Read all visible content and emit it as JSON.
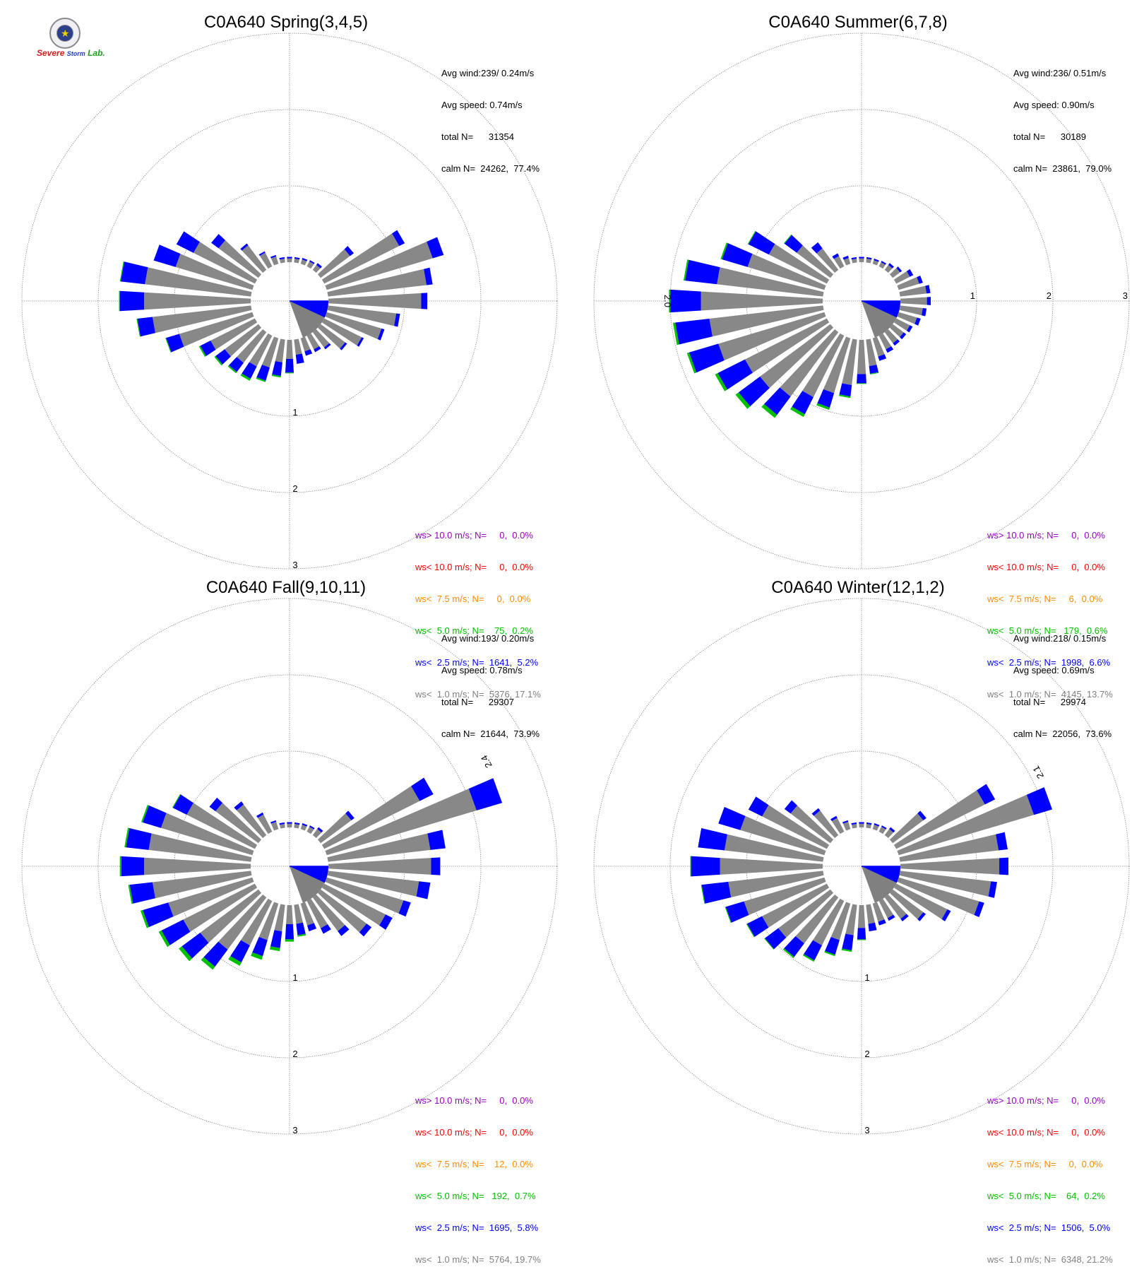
{
  "colors": {
    "calm": "#808080",
    "lt1_0": "#888888",
    "lt2_5": "#0000ff",
    "lt5_0": "#00c000",
    "lt7_5": "#ff8c00",
    "lt10_0": "#ff0000",
    "gt10_0": "#9900cc"
  },
  "logo": {
    "text_s": "Severe",
    "text_storm": "Storm",
    "text_lab": "Lab."
  },
  "chart_data": [
    {
      "type": "wind-rose",
      "title": "C0A640 Spring(3,4,5)",
      "stats": {
        "avg_wind": "Avg wind:239/ 0.24m/s",
        "avg_speed": "Avg speed: 0.74m/s",
        "total_n": "total N=      31354",
        "calm_n": "calm N=  24262,  77.4%"
      },
      "ring_labels": [
        "1",
        "2",
        "3"
      ],
      "ring_label_side": "bottom",
      "max_label": "",
      "calm_pct": 77.4,
      "legend": [
        {
          "text": "ws> 10.0 m/s; N=     0,  0.0%",
          "color": "#9900cc"
        },
        {
          "text": "ws< 10.0 m/s; N=     0,  0.0%",
          "color": "#ff0000"
        },
        {
          "text": "ws<  7.5 m/s; N=     0,  0.0%",
          "color": "#ff8c00"
        },
        {
          "text": "ws<  5.0 m/s; N=    75,  0.2%",
          "color": "#00c000"
        },
        {
          "text": "ws<  2.5 m/s; N=  1641,  5.2%",
          "color": "#0000ff"
        },
        {
          "text": "ws<  1.0 m/s; N=  5376, 17.1%",
          "color": "#808080"
        }
      ],
      "directions_deg": [
        0,
        10,
        20,
        30,
        40,
        50,
        60,
        70,
        80,
        90,
        100,
        110,
        120,
        130,
        140,
        150,
        160,
        170,
        180,
        190,
        200,
        210,
        220,
        230,
        240,
        250,
        260,
        270,
        280,
        290,
        300,
        310,
        320,
        330,
        340,
        350
      ],
      "lt1": [
        0.05,
        0.05,
        0.06,
        0.07,
        0.08,
        0.48,
        1.1,
        1.45,
        1.3,
        1.22,
        0.9,
        0.75,
        0.55,
        0.4,
        0.25,
        0.2,
        0.18,
        0.2,
        0.25,
        0.3,
        0.4,
        0.45,
        0.5,
        0.55,
        0.65,
        1.0,
        1.3,
        1.4,
        1.4,
        1.05,
        0.9,
        0.65,
        0.4,
        0.2,
        0.1,
        0.05
      ],
      "lt2_5": [
        0.02,
        0.02,
        0.02,
        0.02,
        0.03,
        0.06,
        0.08,
        0.15,
        0.08,
        0.08,
        0.05,
        0.04,
        0.03,
        0.03,
        0.03,
        0.04,
        0.06,
        0.12,
        0.18,
        0.18,
        0.18,
        0.18,
        0.15,
        0.15,
        0.15,
        0.18,
        0.2,
        0.32,
        0.32,
        0.3,
        0.25,
        0.12,
        0.03,
        0.02,
        0.02,
        0.02
      ],
      "lt5": [
        0,
        0,
        0,
        0,
        0,
        0,
        0,
        0,
        0,
        0,
        0,
        0,
        0,
        0,
        0,
        0,
        0,
        0,
        0.01,
        0.02,
        0.02,
        0.03,
        0.02,
        0.02,
        0.02,
        0.01,
        0.01,
        0.01,
        0.01,
        0,
        0,
        0,
        0,
        0,
        0,
        0
      ]
    },
    {
      "type": "wind-rose",
      "title": "C0A640 Summer(6,7,8)",
      "stats": {
        "avg_wind": "Avg wind:236/ 0.51m/s",
        "avg_speed": "Avg speed: 0.90m/s",
        "total_n": "total N=      30189",
        "calm_n": "calm N=  23861,  79.0%"
      },
      "ring_labels": [
        "1",
        "2",
        "3"
      ],
      "ring_label_side": "right",
      "max_label": "2.0",
      "max_label_dir": 270,
      "calm_pct": 79.0,
      "legend": [
        {
          "text": "ws> 10.0 m/s; N=     0,  0.0%",
          "color": "#9900cc"
        },
        {
          "text": "ws< 10.0 m/s; N=     0,  0.0%",
          "color": "#ff0000"
        },
        {
          "text": "ws<  7.5 m/s; N=     6,  0.0%",
          "color": "#ff8c00"
        },
        {
          "text": "ws<  5.0 m/s; N=   179,  0.6%",
          "color": "#00c000"
        },
        {
          "text": "ws<  2.5 m/s; N=  1998,  6.6%",
          "color": "#0000ff"
        },
        {
          "text": "ws<  1.0 m/s; N=  4145, 13.7%",
          "color": "#808080"
        }
      ],
      "directions_deg": [
        0,
        10,
        20,
        30,
        40,
        50,
        60,
        70,
        80,
        90,
        100,
        110,
        120,
        130,
        140,
        150,
        160,
        170,
        180,
        190,
        200,
        210,
        220,
        230,
        240,
        250,
        260,
        270,
        280,
        290,
        300,
        310,
        320,
        330,
        340,
        350
      ],
      "lt1": [
        0.05,
        0.05,
        0.05,
        0.06,
        0.08,
        0.12,
        0.2,
        0.28,
        0.35,
        0.35,
        0.3,
        0.25,
        0.2,
        0.18,
        0.18,
        0.2,
        0.25,
        0.35,
        0.45,
        0.6,
        0.75,
        0.9,
        1.05,
        1.15,
        1.2,
        1.45,
        1.5,
        1.6,
        1.4,
        1.05,
        0.85,
        0.55,
        0.35,
        0.15,
        0.08,
        0.05
      ],
      "lt2_5": [
        0.02,
        0.02,
        0.02,
        0.02,
        0.03,
        0.03,
        0.05,
        0.05,
        0.05,
        0.05,
        0.05,
        0.05,
        0.04,
        0.04,
        0.04,
        0.05,
        0.06,
        0.1,
        0.12,
        0.15,
        0.2,
        0.25,
        0.3,
        0.35,
        0.4,
        0.4,
        0.45,
        0.4,
        0.42,
        0.35,
        0.3,
        0.2,
        0.1,
        0.04,
        0.03,
        0.02
      ],
      "lt5": [
        0,
        0,
        0,
        0,
        0,
        0,
        0,
        0,
        0,
        0,
        0,
        0,
        0,
        0,
        0,
        0,
        0,
        0.01,
        0.01,
        0.02,
        0.03,
        0.04,
        0.05,
        0.05,
        0.04,
        0.03,
        0.03,
        0.02,
        0.02,
        0.02,
        0.01,
        0.01,
        0,
        0,
        0,
        0
      ]
    },
    {
      "type": "wind-rose",
      "title": "C0A640 Fall(9,10,11)",
      "stats": {
        "avg_wind": "Avg wind:193/ 0.20m/s",
        "avg_speed": "Avg speed: 0.78m/s",
        "total_n": "total N=      29307",
        "calm_n": "calm N=  21644,  73.9%"
      },
      "ring_labels": [
        "1",
        "2",
        "3"
      ],
      "ring_label_side": "bottom",
      "max_label": "2.4",
      "max_label_dir": 62,
      "calm_pct": 73.9,
      "legend": [
        {
          "text": "ws> 10.0 m/s; N=     0,  0.0%",
          "color": "#9900cc"
        },
        {
          "text": "ws< 10.0 m/s; N=     0,  0.0%",
          "color": "#ff0000"
        },
        {
          "text": "ws<  7.5 m/s; N=    12,  0.0%",
          "color": "#ff8c00"
        },
        {
          "text": "ws<  5.0 m/s; N=   192,  0.7%",
          "color": "#00c000"
        },
        {
          "text": "ws<  2.5 m/s; N=  1695,  5.8%",
          "color": "#0000ff"
        },
        {
          "text": "ws<  1.0 m/s; N=  5764, 19.7%",
          "color": "#808080"
        }
      ],
      "directions_deg": [
        0,
        10,
        20,
        30,
        40,
        50,
        60,
        70,
        80,
        90,
        100,
        110,
        120,
        130,
        140,
        150,
        160,
        170,
        180,
        190,
        200,
        210,
        220,
        230,
        240,
        250,
        260,
        270,
        280,
        290,
        300,
        310,
        320,
        330,
        340,
        350
      ],
      "lt1": [
        0.05,
        0.05,
        0.06,
        0.07,
        0.1,
        0.5,
        1.4,
        2.05,
        1.35,
        1.35,
        1.2,
        1.05,
        0.9,
        0.75,
        0.55,
        0.4,
        0.3,
        0.25,
        0.25,
        0.35,
        0.5,
        0.65,
        0.85,
        0.95,
        1.05,
        1.15,
        1.3,
        1.4,
        1.35,
        1.25,
        1.0,
        0.7,
        0.5,
        0.25,
        0.1,
        0.05
      ],
      "lt2_5": [
        0.02,
        0.02,
        0.02,
        0.02,
        0.03,
        0.05,
        0.2,
        0.35,
        0.2,
        0.12,
        0.15,
        0.1,
        0.1,
        0.08,
        0.08,
        0.08,
        0.08,
        0.15,
        0.2,
        0.22,
        0.22,
        0.25,
        0.28,
        0.3,
        0.32,
        0.35,
        0.3,
        0.3,
        0.3,
        0.25,
        0.2,
        0.1,
        0.05,
        0.03,
        0.02,
        0.02
      ],
      "lt5": [
        0,
        0,
        0,
        0,
        0,
        0,
        0,
        0,
        0,
        0,
        0,
        0,
        0,
        0,
        0,
        0,
        0,
        0.02,
        0.03,
        0.04,
        0.05,
        0.05,
        0.05,
        0.05,
        0.04,
        0.03,
        0.02,
        0.02,
        0.02,
        0.02,
        0.01,
        0,
        0,
        0,
        0,
        0
      ]
    },
    {
      "type": "wind-rose",
      "title": "C0A640 Winter(12,1,2)",
      "stats": {
        "avg_wind": "Avg wind:218/ 0.15m/s",
        "avg_speed": "Avg speed: 0.69m/s",
        "total_n": "total N=      29974",
        "calm_n": "calm N=  22056,  73.6%"
      },
      "ring_labels": [
        "1",
        "2",
        "3"
      ],
      "ring_label_side": "bottom",
      "max_label": "2.1",
      "max_label_dir": 62,
      "calm_pct": 73.6,
      "legend": [
        {
          "text": "ws> 10.0 m/s; N=     0,  0.0%",
          "color": "#9900cc"
        },
        {
          "text": "ws< 10.0 m/s; N=     0,  0.0%",
          "color": "#ff0000"
        },
        {
          "text": "ws<  7.5 m/s; N=     0,  0.0%",
          "color": "#ff8c00"
        },
        {
          "text": "ws<  5.0 m/s; N=    64,  0.2%",
          "color": "#00c000"
        },
        {
          "text": "ws<  2.5 m/s; N=  1506,  5.0%",
          "color": "#0000ff"
        },
        {
          "text": "ws<  1.0 m/s; N=  6348, 21.2%",
          "color": "#808080"
        }
      ],
      "directions_deg": [
        0,
        10,
        20,
        30,
        40,
        50,
        60,
        70,
        80,
        90,
        100,
        110,
        120,
        130,
        140,
        150,
        160,
        170,
        180,
        190,
        200,
        210,
        220,
        230,
        240,
        250,
        260,
        270,
        280,
        290,
        300,
        310,
        320,
        330,
        340,
        350
      ],
      "lt1": [
        0.05,
        0.05,
        0.06,
        0.07,
        0.1,
        0.5,
        1.3,
        1.85,
        1.3,
        1.3,
        1.2,
        1.1,
        0.75,
        0.5,
        0.35,
        0.25,
        0.25,
        0.25,
        0.3,
        0.4,
        0.5,
        0.65,
        0.75,
        0.85,
        0.95,
        1.1,
        1.25,
        1.35,
        1.3,
        1.15,
        0.95,
        0.65,
        0.4,
        0.2,
        0.1,
        0.05
      ],
      "lt2_5": [
        0.02,
        0.02,
        0.02,
        0.02,
        0.03,
        0.05,
        0.15,
        0.25,
        0.12,
        0.12,
        0.08,
        0.07,
        0.05,
        0.04,
        0.04,
        0.04,
        0.05,
        0.1,
        0.15,
        0.2,
        0.2,
        0.22,
        0.22,
        0.22,
        0.22,
        0.25,
        0.35,
        0.38,
        0.35,
        0.3,
        0.2,
        0.1,
        0.04,
        0.03,
        0.02,
        0.02
      ],
      "lt5": [
        0,
        0,
        0,
        0,
        0,
        0,
        0,
        0,
        0,
        0,
        0,
        0,
        0,
        0,
        0,
        0,
        0,
        0,
        0.01,
        0.02,
        0.02,
        0.02,
        0.02,
        0.01,
        0.01,
        0.01,
        0.01,
        0.01,
        0,
        0,
        0,
        0,
        0,
        0,
        0,
        0
      ]
    }
  ]
}
